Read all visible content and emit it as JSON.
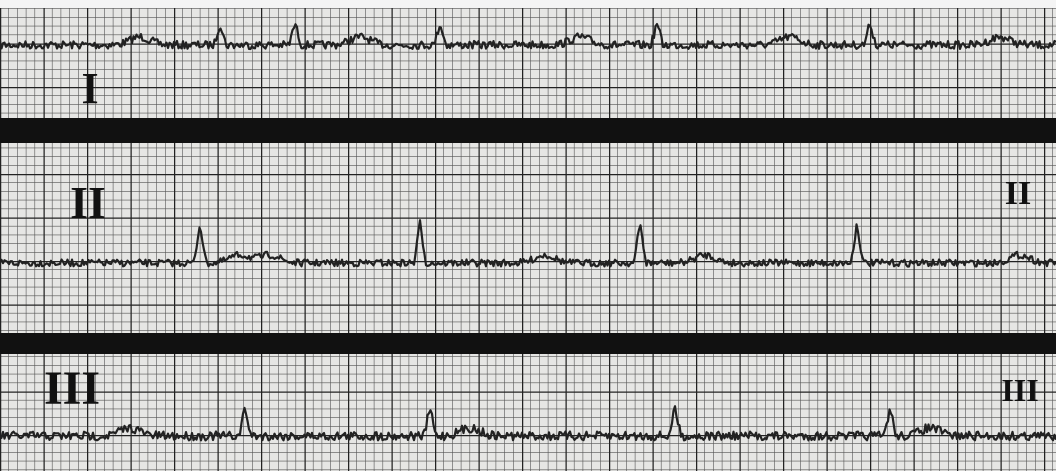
{
  "leads": [
    {
      "label": "I"
    },
    {
      "label": "II",
      "right_label": "II"
    },
    {
      "label": "III",
      "right_label": "III"
    }
  ]
}
